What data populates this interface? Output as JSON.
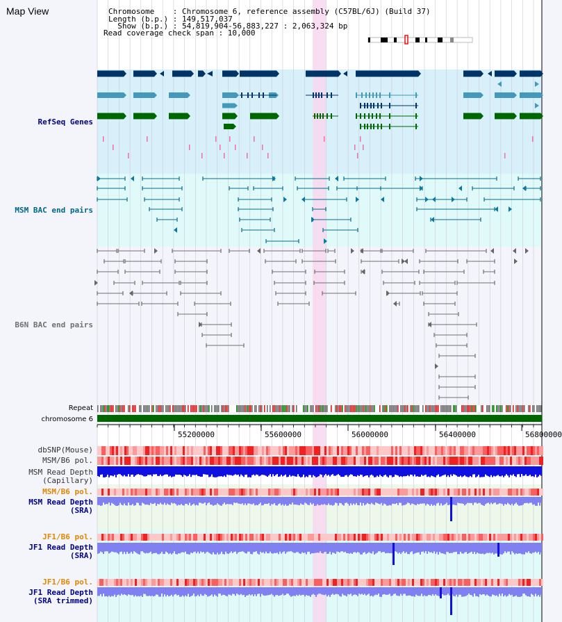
{
  "page_title": "Map View",
  "header": {
    "chromosome_line": "Chromosome    : Chromosome 6, reference assembly (C57BL/6J) (Build 37)",
    "length_line": "Length (b.p.) : 149,517,037",
    "show_line": "  Show (b.p.) : 54,819,904-56,883,227 : 2,063,324 bp",
    "coverage_line": "Read coverage check span : 10,000"
  },
  "tracks": {
    "refseq": "RefSeq Genes",
    "msm_bac": "MSM BAC end pairs",
    "b6n_bac": "B6N BAC end pairs",
    "repeat": "Repeat",
    "chromosome": "chromosome 6",
    "dbsnp": "dbSNP(Mouse)",
    "msm_b6_pol": "MSM/B6 pol.",
    "msm_depth_cap_1": "MSM Read Depth",
    "msm_depth_cap_2": "(Capillary)",
    "msm_b6_pol_sra": "MSM/B6 pol.",
    "msm_depth_sra_1": "MSM Read Depth",
    "msm_depth_sra_2": "(SRA)",
    "jf1_pol_1": "JF1/B6 pol.",
    "jf1_depth_1": "JF1 Read Depth",
    "jf1_depth_1b": "(SRA)",
    "jf1_pol_2": "JF1/B6 pol.",
    "jf1_depth_2": "JF1 Read Depth",
    "jf1_depth_2b": "(SRA trimmed)"
  },
  "ruler": {
    "ticks": [
      "55200000",
      "55600000",
      "56000000",
      "56400000",
      "56800000"
    ]
  },
  "colors": {
    "refseq_bg": "#d8f0fa",
    "msm_bg": "#e0fafa",
    "b6n_bg": "#f4f4fb",
    "highlight": "#f8d8f0",
    "gene_dark": "#003366",
    "gene_mid": "#4499bb",
    "gene_green": "#006600",
    "msm_label": "#006688",
    "bac_gray": "#707070",
    "depth_blue": "#1010e0",
    "depth_light": "#8080f0",
    "orange_label": "#e08800",
    "navy_label": "#000088"
  }
}
